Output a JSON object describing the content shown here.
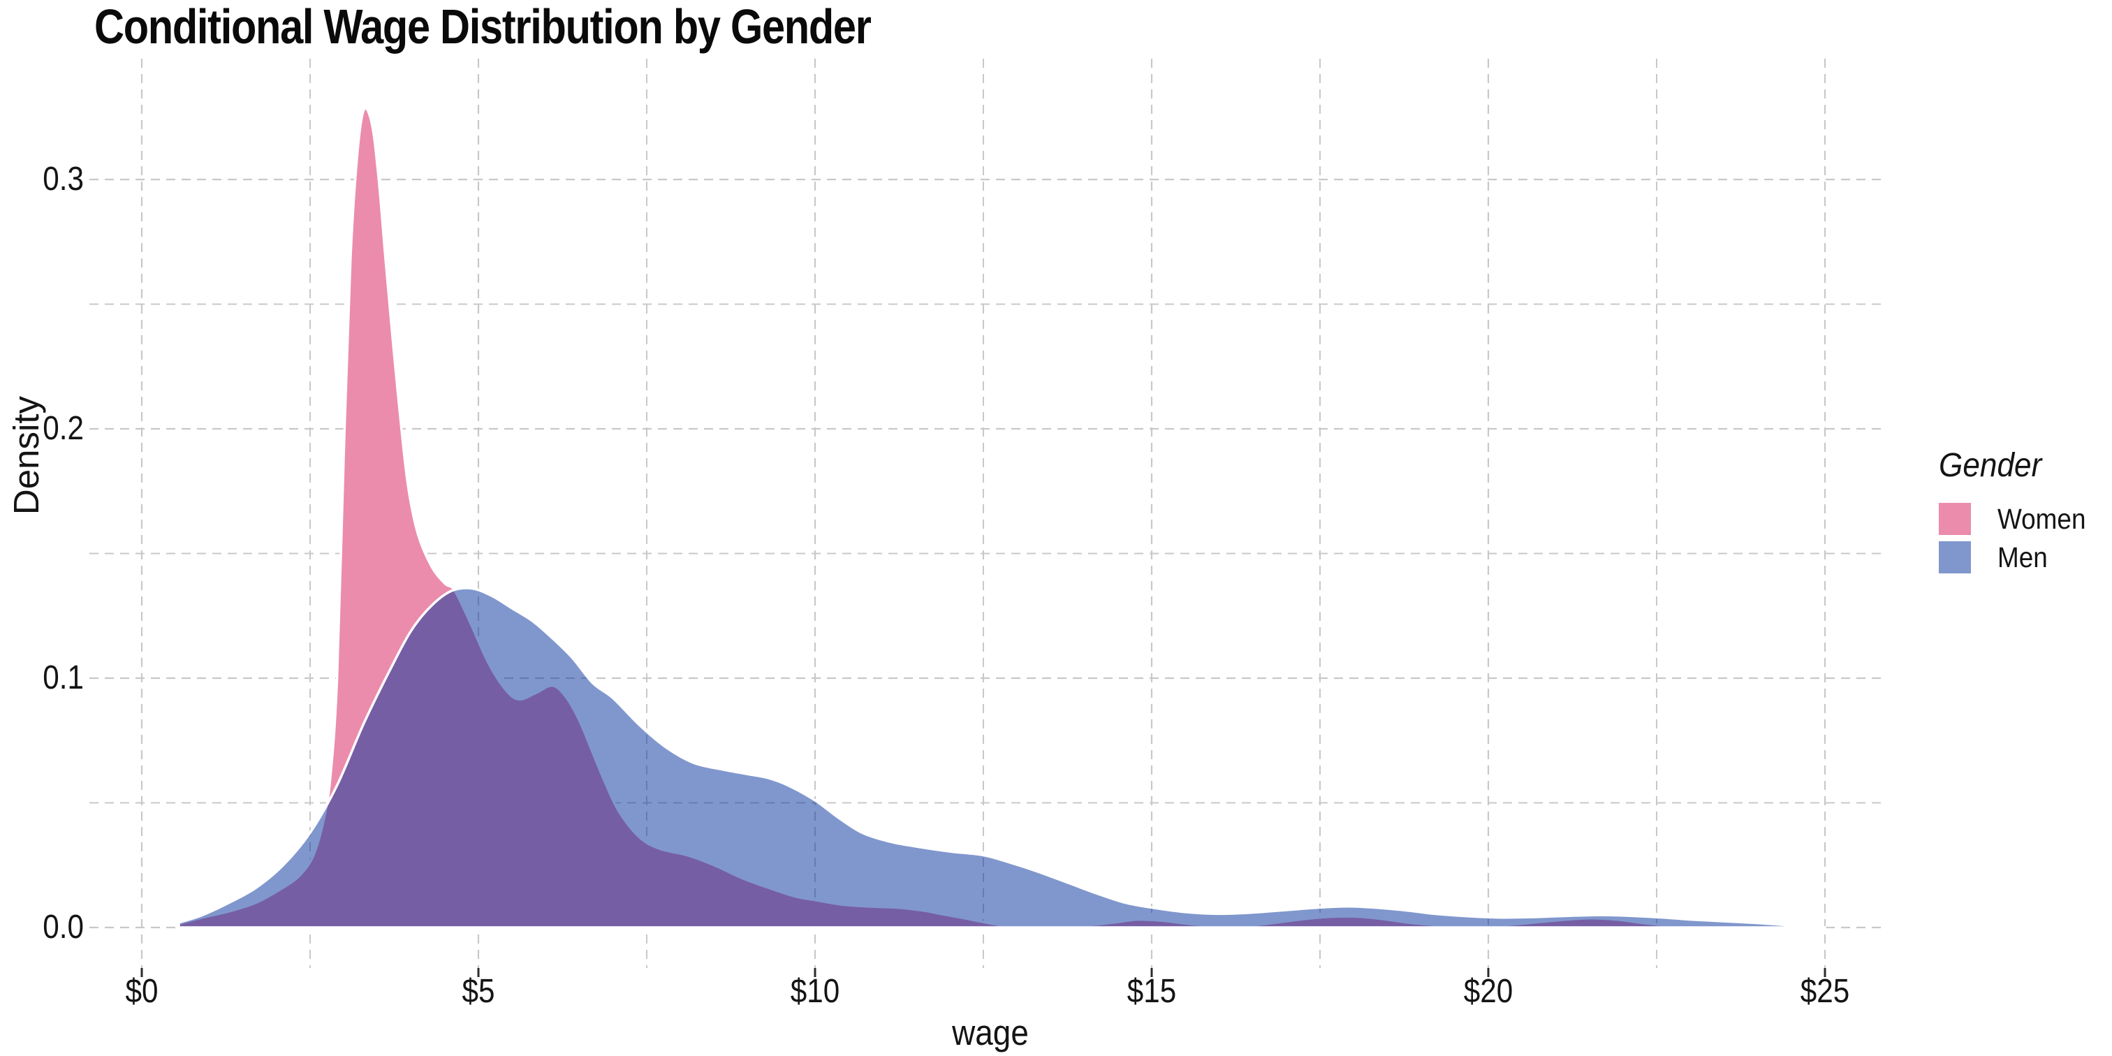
{
  "title": "Conditional Wage Distribution by Gender",
  "legend": {
    "title": "Gender",
    "items": [
      {
        "label": "Women",
        "color": "#EB8CAC"
      },
      {
        "label": "Men",
        "color": "#8097CD"
      }
    ]
  },
  "colors": {
    "women_fill": "#EB8CAC",
    "men_overlay_fill": "rgba(1,47,155,0.5)",
    "men_flat": "#8097CD",
    "overlap": "#7661A6",
    "curve_outline": "#FFFFFF",
    "grid": "#C8C8C8",
    "tick_mark": "#2B2B2B",
    "text": "#141414",
    "title_text": "#0A0A0A",
    "background": "#FFFFFF"
  },
  "chart_data": {
    "type": "area",
    "subtype": "overlapping-density",
    "title": "Conditional Wage Distribution by Gender",
    "xlabel": "wage",
    "ylabel": "Density",
    "xlim": [
      0,
      25
    ],
    "ylim": [
      0,
      0.33
    ],
    "grid": "dashed-major-and-minor",
    "legend_position": "right",
    "x_ticks": [
      {
        "v": 0,
        "label": "$0"
      },
      {
        "v": 5,
        "label": "$5"
      },
      {
        "v": 10,
        "label": "$10"
      },
      {
        "v": 15,
        "label": "$15"
      },
      {
        "v": 20,
        "label": "$20"
      },
      {
        "v": 25,
        "label": "$25"
      }
    ],
    "x_minor": [
      2.5,
      7.5,
      12.5,
      17.5,
      22.5
    ],
    "y_ticks": [
      {
        "v": 0.0,
        "label": "0.0"
      },
      {
        "v": 0.1,
        "label": "0.1"
      },
      {
        "v": 0.2,
        "label": "0.2"
      },
      {
        "v": 0.3,
        "label": "0.3"
      }
    ],
    "y_minor": [
      0.05,
      0.15,
      0.25
    ],
    "series": [
      {
        "name": "Women",
        "points": [
          [
            0.55,
            0.0015
          ],
          [
            0.9,
            0.004
          ],
          [
            1.3,
            0.0065
          ],
          [
            1.7,
            0.01
          ],
          [
            2.1,
            0.016
          ],
          [
            2.35,
            0.021
          ],
          [
            2.55,
            0.029
          ],
          [
            2.7,
            0.043
          ],
          [
            2.8,
            0.06
          ],
          [
            2.9,
            0.1
          ],
          [
            3.0,
            0.19
          ],
          [
            3.1,
            0.268
          ],
          [
            3.2,
            0.31
          ],
          [
            3.3,
            0.328
          ],
          [
            3.42,
            0.322
          ],
          [
            3.52,
            0.3
          ],
          [
            3.62,
            0.268
          ],
          [
            3.72,
            0.238
          ],
          [
            3.82,
            0.21
          ],
          [
            3.95,
            0.178
          ],
          [
            4.1,
            0.158
          ],
          [
            4.3,
            0.145
          ],
          [
            4.5,
            0.138
          ],
          [
            4.65,
            0.135
          ],
          [
            4.9,
            0.121
          ],
          [
            5.15,
            0.106
          ],
          [
            5.4,
            0.0955
          ],
          [
            5.6,
            0.0915
          ],
          [
            5.85,
            0.094
          ],
          [
            6.1,
            0.097
          ],
          [
            6.3,
            0.0925
          ],
          [
            6.5,
            0.083
          ],
          [
            6.7,
            0.07
          ],
          [
            6.9,
            0.057
          ],
          [
            7.1,
            0.046
          ],
          [
            7.4,
            0.036
          ],
          [
            7.7,
            0.0315
          ],
          [
            8.1,
            0.029
          ],
          [
            8.5,
            0.025
          ],
          [
            8.9,
            0.02
          ],
          [
            9.3,
            0.016
          ],
          [
            9.7,
            0.0125
          ],
          [
            10.0,
            0.011
          ],
          [
            10.4,
            0.0092
          ],
          [
            10.8,
            0.0084
          ],
          [
            11.2,
            0.008
          ],
          [
            11.6,
            0.0068
          ],
          [
            11.9,
            0.0053
          ],
          [
            12.2,
            0.0038
          ],
          [
            12.5,
            0.0022
          ],
          [
            12.8,
            0.0008
          ],
          [
            13.2,
            0.0002
          ],
          [
            13.7,
            0.0002
          ],
          [
            14.1,
            0.001
          ],
          [
            14.5,
            0.0022
          ],
          [
            14.8,
            0.0032
          ],
          [
            15.2,
            0.0026
          ],
          [
            15.6,
            0.0013
          ],
          [
            16.0,
            0.0006
          ],
          [
            16.4,
            0.0007
          ],
          [
            16.8,
            0.0018
          ],
          [
            17.2,
            0.0032
          ],
          [
            17.6,
            0.0042
          ],
          [
            18.0,
            0.0044
          ],
          [
            18.4,
            0.0035
          ],
          [
            18.8,
            0.002
          ],
          [
            19.2,
            0.001
          ],
          [
            19.6,
            0.0004
          ],
          [
            20.0,
            0.0005
          ],
          [
            20.5,
            0.0015
          ],
          [
            21.0,
            0.0028
          ],
          [
            21.5,
            0.0037
          ],
          [
            21.9,
            0.0032
          ],
          [
            22.3,
            0.0018
          ],
          [
            22.7,
            0.0007
          ],
          [
            23.0,
            0.0002
          ],
          [
            23.2,
            0.0
          ]
        ]
      },
      {
        "name": "Men",
        "points": [
          [
            0.55,
            0.002
          ],
          [
            0.9,
            0.005
          ],
          [
            1.3,
            0.01
          ],
          [
            1.7,
            0.016
          ],
          [
            2.1,
            0.025
          ],
          [
            2.5,
            0.038
          ],
          [
            2.9,
            0.057
          ],
          [
            3.3,
            0.082
          ],
          [
            3.7,
            0.104
          ],
          [
            4.0,
            0.119
          ],
          [
            4.3,
            0.129
          ],
          [
            4.6,
            0.135
          ],
          [
            4.9,
            0.136
          ],
          [
            5.2,
            0.133
          ],
          [
            5.5,
            0.128
          ],
          [
            5.8,
            0.123
          ],
          [
            6.1,
            0.116
          ],
          [
            6.4,
            0.108
          ],
          [
            6.7,
            0.098
          ],
          [
            7.0,
            0.092
          ],
          [
            7.4,
            0.081
          ],
          [
            7.8,
            0.072
          ],
          [
            8.2,
            0.066
          ],
          [
            8.6,
            0.0635
          ],
          [
            9.0,
            0.0615
          ],
          [
            9.3,
            0.06
          ],
          [
            9.6,
            0.057
          ],
          [
            10.0,
            0.051
          ],
          [
            10.35,
            0.044
          ],
          [
            10.7,
            0.038
          ],
          [
            11.1,
            0.0345
          ],
          [
            11.5,
            0.0325
          ],
          [
            12.0,
            0.0305
          ],
          [
            12.5,
            0.029
          ],
          [
            12.9,
            0.026
          ],
          [
            13.3,
            0.0225
          ],
          [
            13.8,
            0.0175
          ],
          [
            14.2,
            0.0135
          ],
          [
            14.6,
            0.01
          ],
          [
            15.0,
            0.008
          ],
          [
            15.5,
            0.0062
          ],
          [
            16.0,
            0.0055
          ],
          [
            16.5,
            0.006
          ],
          [
            17.0,
            0.007
          ],
          [
            17.5,
            0.008
          ],
          [
            17.9,
            0.0085
          ],
          [
            18.3,
            0.008
          ],
          [
            18.8,
            0.0068
          ],
          [
            19.2,
            0.0055
          ],
          [
            19.7,
            0.0045
          ],
          [
            20.2,
            0.004
          ],
          [
            20.7,
            0.0042
          ],
          [
            21.2,
            0.0047
          ],
          [
            21.7,
            0.005
          ],
          [
            22.1,
            0.0047
          ],
          [
            22.6,
            0.004
          ],
          [
            23.0,
            0.0032
          ],
          [
            23.5,
            0.0025
          ],
          [
            24.0,
            0.0018
          ],
          [
            24.4,
            0.001
          ],
          [
            24.8,
            0.0003
          ],
          [
            25.0,
            0.0001
          ]
        ]
      }
    ]
  }
}
